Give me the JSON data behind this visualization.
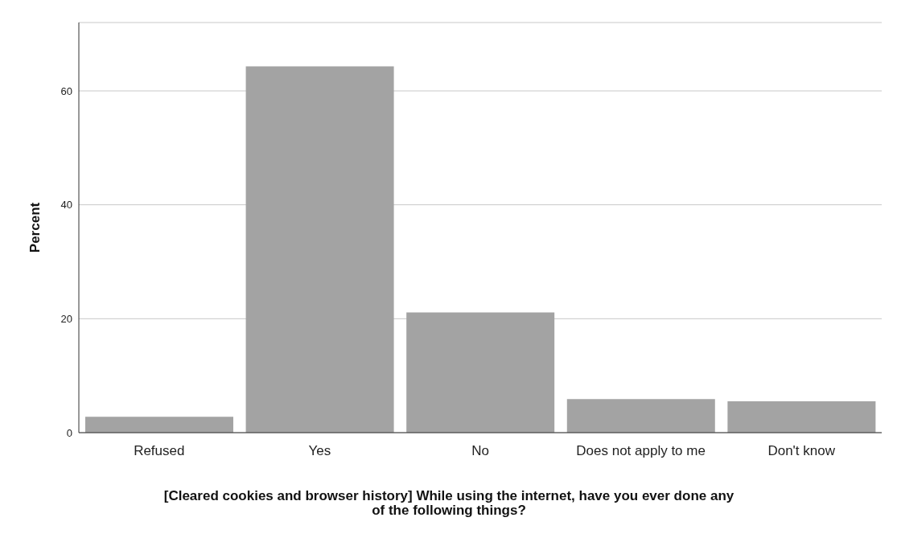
{
  "chart_data": {
    "type": "bar",
    "xlabel": "[Cleared cookies and browser history] While using the internet, have you ever done any of the following things?",
    "ylabel": "Percent",
    "categories": [
      "Refused",
      "Yes",
      "No",
      "Does not apply to me",
      "Don't know"
    ],
    "values": [
      2.8,
      64.3,
      21.1,
      5.9,
      5.5
    ],
    "color": "#a3a3a3",
    "ylim": [
      0,
      72
    ],
    "yticks": [
      0,
      20,
      40,
      60
    ],
    "grid": "y"
  }
}
